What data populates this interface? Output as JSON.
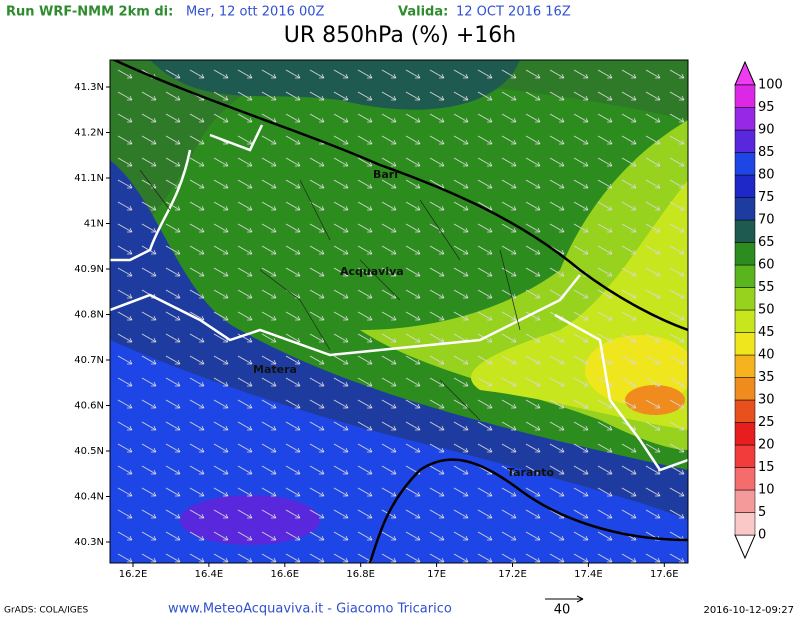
{
  "header": {
    "run_label": "Run WRF-NMM 2km di:",
    "run_date": "Mer, 12 ott 2016 00Z",
    "valid_label": "Valida:",
    "valid_date": "12 OCT 2016 16Z",
    "title": "UR 850hPa (%) +16h"
  },
  "map": {
    "lat_labels": [
      "41.3N",
      "41.2N",
      "41.1N",
      "41N",
      "40.9N",
      "40.8N",
      "40.7N",
      "40.6N",
      "40.5N",
      "40.4N",
      "40.3N"
    ],
    "lon_labels": [
      "16.2E",
      "16.4E",
      "16.6E",
      "16.8E",
      "17E",
      "17.2E",
      "17.4E",
      "17.6E"
    ],
    "cities": [
      {
        "label": "Bari"
      },
      {
        "label": "Acquaviva"
      },
      {
        "label": "Matera"
      },
      {
        "label": "Taranto"
      }
    ]
  },
  "colorbar": {
    "levels": [
      0,
      5,
      10,
      15,
      20,
      25,
      30,
      35,
      40,
      45,
      50,
      55,
      60,
      65,
      70,
      75,
      80,
      85,
      90,
      95,
      100
    ],
    "colors": [
      "#fbc8c8",
      "#f49a9a",
      "#f46c6c",
      "#f23c3c",
      "#e61e1e",
      "#e8501e",
      "#f08c1e",
      "#f5b41e",
      "#f0e61e",
      "#c8e61e",
      "#96d21e",
      "#5ab41e",
      "#2d8c1e",
      "#1e5a50",
      "#1e3ca0",
      "#1e28c8",
      "#1e46e6",
      "#5a28dc",
      "#9628e6",
      "#dc28e6"
    ]
  },
  "vector_key": {
    "label": "40"
  },
  "footer": {
    "credit": "GrADS: COLA/IGES",
    "site": "www.MeteoAcquaviva.it - Giacomo Tricarico",
    "timestamp": "2016-10-12-09:27"
  }
}
